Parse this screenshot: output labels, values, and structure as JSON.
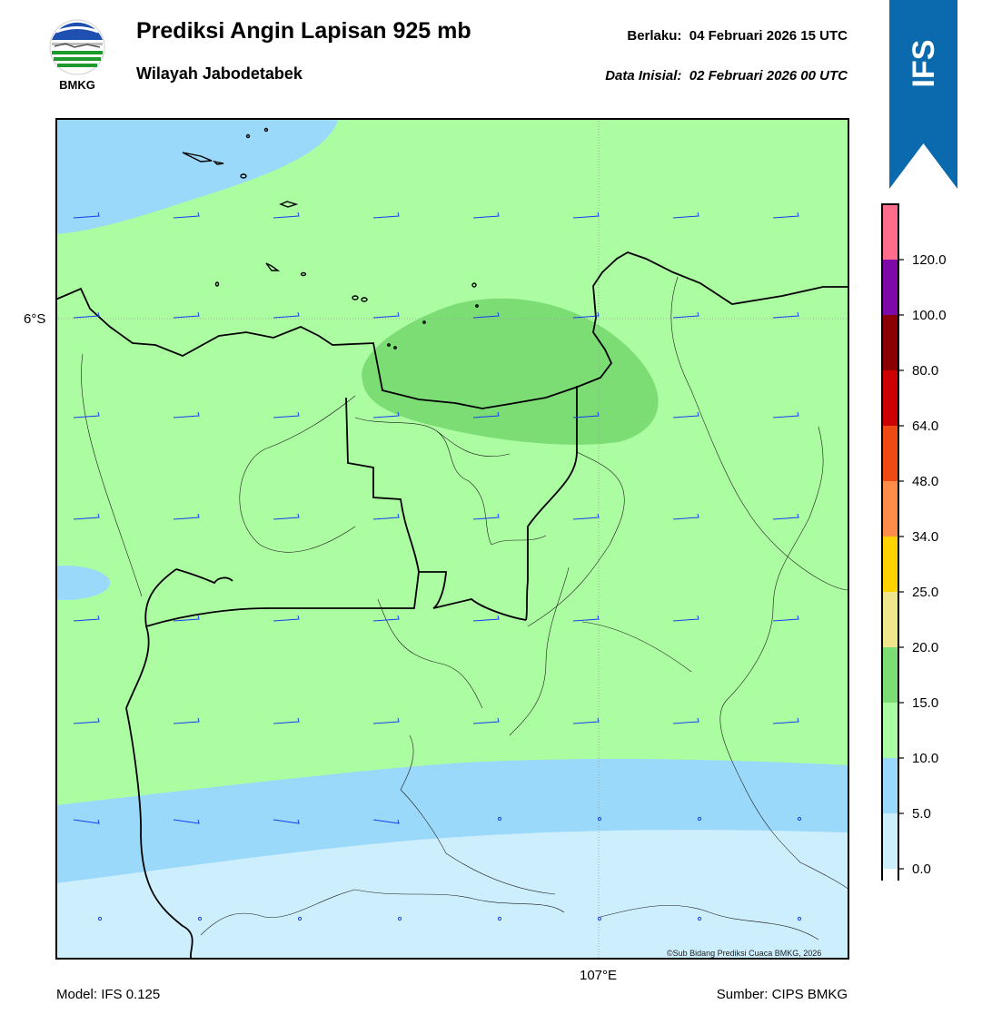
{
  "header": {
    "title": "Prediksi Angin Lapisan 925 mb",
    "subtitle": "Wilayah Jabodetabek",
    "valid_label": "Berlaku:",
    "valid_time": "04 Februari 2026 15 UTC",
    "init_label": "Data Inisial:",
    "init_time": "02 Februari 2026 00 UTC"
  },
  "logo": {
    "text": "BMKG"
  },
  "banner": {
    "text": "IFS",
    "color": "#0a6aad"
  },
  "map": {
    "lat_label": "6°S",
    "lon_label": "107°E",
    "copyright": "©Sub Bidang Prediksi Cuaca BMKG, 2026"
  },
  "legend": {
    "ticks": [
      "0.0",
      "5.0",
      "10.0",
      "15.0",
      "20.0",
      "25.0",
      "34.0",
      "48.0",
      "64.0",
      "80.0",
      "100.0",
      "120.0"
    ],
    "colors": [
      "#ffffff",
      "#cdeffd",
      "#9ad9fa",
      "#acfda2",
      "#7bdd74",
      "#f0e68c",
      "#ffd300",
      "#ff8c4a",
      "#ee4a14",
      "#cc0000",
      "#8a0000",
      "#7d0aa8",
      "#fe6d8c"
    ]
  },
  "footer": {
    "model": "Model: IFS 0.125",
    "source": "Sumber: CIPS BMKG"
  }
}
